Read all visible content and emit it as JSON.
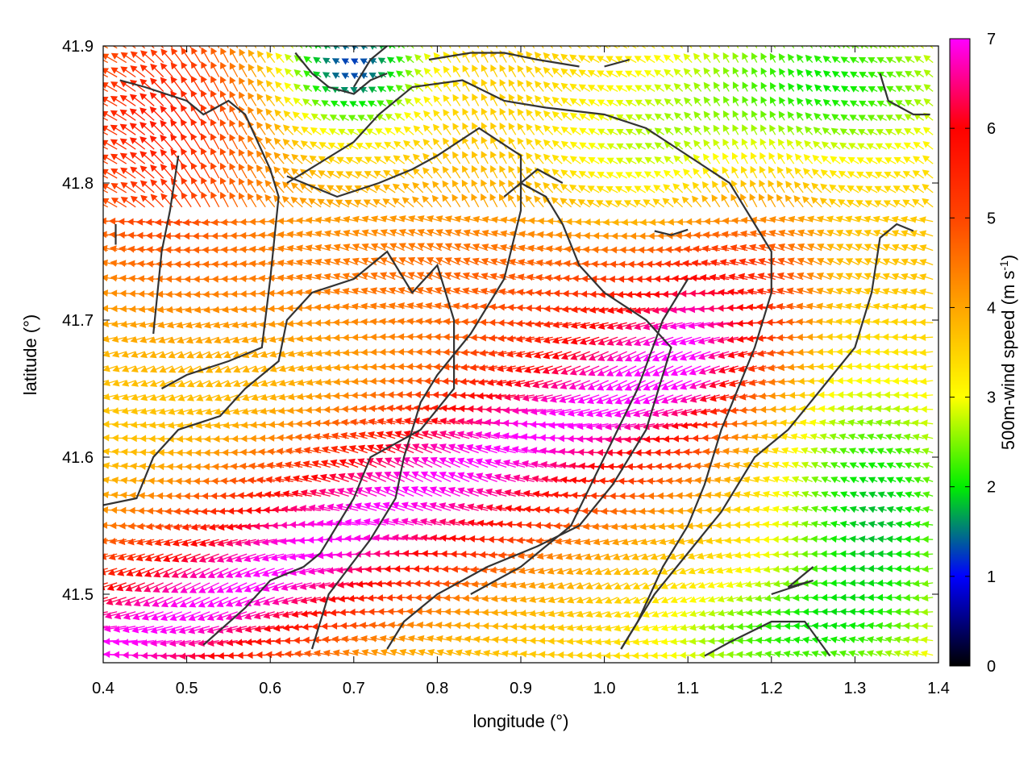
{
  "chart_data": {
    "type": "heatmap",
    "subtype": "wind-vector-field",
    "xlabel": "longitude (°)",
    "ylabel": "latitude (°)",
    "colorbar_label": "500m-wind speed (m s-1)",
    "colorbar_label_parts": {
      "main": "500m-wind speed (m s",
      "sup": "-1",
      "end": ")"
    },
    "xlim": [
      0.4,
      1.4
    ],
    "ylim": [
      41.45,
      41.9
    ],
    "x_ticks": [
      "0.4",
      "0.5",
      "0.6",
      "0.7",
      "0.8",
      "0.9",
      "1.0",
      "1.1",
      "1.2",
      "1.3",
      "1.4"
    ],
    "y_ticks": [
      "41.5",
      "41.6",
      "41.7",
      "41.8",
      "41.9"
    ],
    "colorbar_range": [
      0,
      7
    ],
    "colorbar_ticks": [
      "0",
      "1",
      "2",
      "3",
      "4",
      "5",
      "6",
      "7"
    ],
    "colormap": [
      {
        "v": 0,
        "c": "#000000"
      },
      {
        "v": 1,
        "c": "#0000ff"
      },
      {
        "v": 2,
        "c": "#00ee00"
      },
      {
        "v": 3,
        "c": "#ffff00"
      },
      {
        "v": 4,
        "c": "#ffa500"
      },
      {
        "v": 5,
        "c": "#ff4500"
      },
      {
        "v": 6,
        "c": "#ff0000"
      },
      {
        "v": 7,
        "c": "#ff00ff"
      }
    ],
    "contour_color": "#333333",
    "grid": false,
    "contours": [
      [
        [
          0.52,
          41.463
        ],
        [
          0.57,
          41.49
        ],
        [
          0.6,
          41.51
        ],
        [
          0.64,
          41.52
        ],
        [
          0.66,
          41.53
        ],
        [
          0.7,
          41.57
        ],
        [
          0.72,
          41.6
        ],
        [
          0.78,
          41.62
        ],
        [
          0.82,
          41.65
        ],
        [
          0.82,
          41.7
        ],
        [
          0.8,
          41.74
        ],
        [
          0.77,
          41.72
        ],
        [
          0.74,
          41.75
        ],
        [
          0.7,
          41.73
        ],
        [
          0.65,
          41.72
        ],
        [
          0.62,
          41.7
        ],
        [
          0.61,
          41.67
        ],
        [
          0.57,
          41.65
        ],
        [
          0.54,
          41.63
        ],
        [
          0.49,
          41.62
        ],
        [
          0.46,
          41.6
        ],
        [
          0.44,
          41.57
        ],
        [
          0.4,
          41.565
        ]
      ],
      [
        [
          0.47,
          41.65
        ],
        [
          0.5,
          41.66
        ],
        [
          0.55,
          41.67
        ],
        [
          0.59,
          41.68
        ],
        [
          0.6,
          41.73
        ],
        [
          0.61,
          41.79
        ],
        [
          0.6,
          41.81
        ],
        [
          0.57,
          41.85
        ],
        [
          0.55,
          41.86
        ],
        [
          0.52,
          41.85
        ],
        [
          0.5,
          41.86
        ],
        [
          0.45,
          41.87
        ],
        [
          0.42,
          41.875
        ]
      ],
      [
        [
          0.49,
          41.82
        ],
        [
          0.48,
          41.78
        ],
        [
          0.47,
          41.75
        ],
        [
          0.46,
          41.69
        ]
      ],
      [
        [
          0.415,
          41.77
        ],
        [
          0.415,
          41.755
        ]
      ],
      [
        [
          0.65,
          41.46
        ],
        [
          0.67,
          41.5
        ],
        [
          0.72,
          41.54
        ],
        [
          0.75,
          41.57
        ],
        [
          0.76,
          41.6
        ],
        [
          0.78,
          41.64
        ],
        [
          0.8,
          41.66
        ],
        [
          0.84,
          41.69
        ],
        [
          0.88,
          41.73
        ],
        [
          0.9,
          41.78
        ],
        [
          0.9,
          41.82
        ],
        [
          0.85,
          41.84
        ],
        [
          0.8,
          41.82
        ],
        [
          0.77,
          41.81
        ],
        [
          0.73,
          41.8
        ],
        [
          0.68,
          41.79
        ],
        [
          0.62,
          41.805
        ]
      ],
      [
        [
          0.62,
          41.8
        ],
        [
          0.66,
          41.815
        ],
        [
          0.7,
          41.83
        ],
        [
          0.73,
          41.85
        ],
        [
          0.77,
          41.87
        ],
        [
          0.83,
          41.875
        ],
        [
          0.88,
          41.86
        ],
        [
          0.93,
          41.855
        ],
        [
          1.0,
          41.85
        ],
        [
          1.05,
          41.84
        ],
        [
          1.1,
          41.82
        ],
        [
          1.15,
          41.8
        ],
        [
          1.18,
          41.77
        ],
        [
          1.2,
          41.75
        ],
        [
          1.2,
          41.72
        ],
        [
          1.18,
          41.68
        ],
        [
          1.16,
          41.65
        ],
        [
          1.14,
          41.62
        ],
        [
          1.12,
          41.58
        ],
        [
          1.1,
          41.55
        ],
        [
          1.07,
          41.52
        ],
        [
          1.04,
          41.48
        ],
        [
          1.02,
          41.46
        ]
      ],
      [
        [
          0.74,
          41.46
        ],
        [
          0.76,
          41.48
        ],
        [
          0.8,
          41.5
        ],
        [
          0.86,
          41.52
        ],
        [
          0.92,
          41.535
        ],
        [
          0.97,
          41.55
        ],
        [
          1.01,
          41.58
        ],
        [
          1.05,
          41.62
        ],
        [
          1.08,
          41.68
        ],
        [
          1.05,
          41.7
        ],
        [
          1.0,
          41.72
        ],
        [
          0.97,
          41.74
        ],
        [
          0.95,
          41.77
        ],
        [
          0.93,
          41.79
        ],
        [
          0.9,
          41.8
        ],
        [
          0.88,
          41.79
        ],
        [
          0.92,
          41.81
        ],
        [
          0.95,
          41.8
        ]
      ],
      [
        [
          1.06,
          41.765
        ],
        [
          1.08,
          41.762
        ],
        [
          1.1,
          41.766
        ]
      ],
      [
        [
          1.2,
          41.5
        ],
        [
          1.25,
          41.51
        ],
        [
          1.22,
          41.505
        ],
        [
          1.25,
          41.52
        ]
      ],
      [
        [
          1.12,
          41.455
        ],
        [
          1.15,
          41.465
        ],
        [
          1.2,
          41.48
        ],
        [
          1.24,
          41.48
        ],
        [
          1.27,
          41.455
        ]
      ],
      [
        [
          1.02,
          41.46
        ],
        [
          1.06,
          41.5
        ],
        [
          1.1,
          41.53
        ],
        [
          1.14,
          41.56
        ],
        [
          1.18,
          41.6
        ],
        [
          1.22,
          41.62
        ],
        [
          1.26,
          41.65
        ],
        [
          1.3,
          41.68
        ],
        [
          1.32,
          41.72
        ],
        [
          1.33,
          41.76
        ],
        [
          1.35,
          41.77
        ],
        [
          1.37,
          41.765
        ]
      ],
      [
        [
          0.84,
          41.5
        ],
        [
          0.9,
          41.52
        ],
        [
          0.96,
          41.55
        ],
        [
          1.0,
          41.6
        ],
        [
          1.04,
          41.65
        ],
        [
          1.07,
          41.7
        ],
        [
          1.1,
          41.73
        ]
      ],
      [
        [
          1.33,
          41.88
        ],
        [
          1.34,
          41.86
        ],
        [
          1.37,
          41.85
        ],
        [
          1.39,
          41.85
        ]
      ],
      [
        [
          0.79,
          41.89
        ],
        [
          0.84,
          41.895
        ],
        [
          0.88,
          41.895
        ],
        [
          0.92,
          41.89
        ],
        [
          0.97,
          41.885
        ]
      ],
      [
        [
          0.63,
          41.895
        ],
        [
          0.65,
          41.88
        ],
        [
          0.67,
          41.87
        ],
        [
          0.7,
          41.865
        ],
        [
          0.72,
          41.875
        ],
        [
          0.74,
          41.88
        ]
      ],
      [
        [
          0.7,
          41.87
        ],
        [
          0.72,
          41.89
        ],
        [
          0.74,
          41.9
        ]
      ],
      [
        [
          1.0,
          41.885
        ],
        [
          1.03,
          41.89
        ]
      ]
    ],
    "wind_field": {
      "vector_grid_step_deg": 0.0111,
      "dominant_direction": "from east / north-east toward west / south-west",
      "max_speed_region": "magenta band between lon 0.45–1.05, lat 41.46–41.72",
      "min_speed_region": "blue/green near top center (lon 0.65–0.75, lat 41.88–41.9) and near top-right and right edge",
      "speed_regions_ms": [
        {
          "region": "top-left (lon 0.4–0.6, lat 41.75–41.9)",
          "speed": 5.8
        },
        {
          "region": "central magenta band (lon 0.5–1.0, lat 41.5–41.68)",
          "speed": 7
        },
        {
          "region": "middle orange band (lon 0.6–1.2, lat 41.68–41.8)",
          "speed": 4.5
        },
        {
          "region": "right yellow area (lon 1.1–1.35, lat 41.55–41.75)",
          "speed": 3
        },
        {
          "region": "far right green area (lon 1.3–1.4, lat 41.5–41.6)",
          "speed": 2
        },
        {
          "region": "top center blue pocket (lon 0.67–0.73, lat 41.88–41.9)",
          "speed": 0.5
        }
      ]
    }
  }
}
